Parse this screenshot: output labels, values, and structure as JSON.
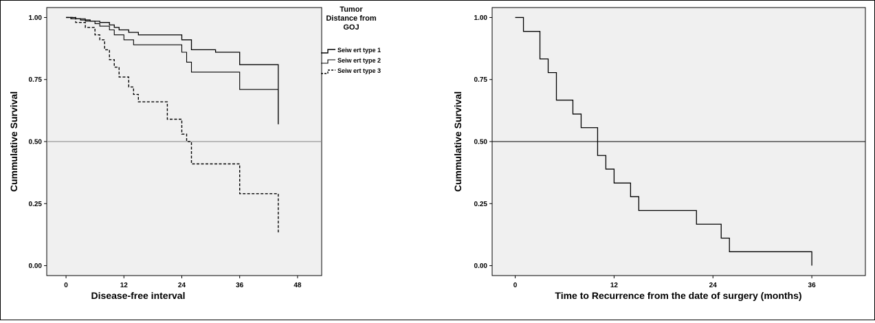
{
  "chart_data": [
    {
      "type": "line",
      "step": true,
      "xlabel": "Disease-free interval",
      "ylabel": "Cummulative Survival",
      "xlim": [
        -4,
        53
      ],
      "ylim": [
        -0.04,
        1.04
      ],
      "xticks": [
        "0",
        "12",
        "24",
        "36",
        "48"
      ],
      "yticks": [
        "0.00",
        "0.25",
        "0.50",
        "0.75",
        "1.00"
      ],
      "reference_line": 0.5,
      "grid": false,
      "background": "#f0f0f0",
      "legend": {
        "position": "right-outside-top",
        "title": "Tumor Distance from GOJ",
        "title_lines": [
          "Tumor",
          "Distance from",
          "GOJ"
        ]
      },
      "series": [
        {
          "name": "Seiw ert type 1",
          "style": "solid",
          "width": 1.3,
          "points": [
            [
              0,
              1.0
            ],
            [
              1,
              0.995
            ],
            [
              3,
              0.99
            ],
            [
              5,
              0.985
            ],
            [
              7,
              0.98
            ],
            [
              9,
              0.97
            ],
            [
              10,
              0.96
            ],
            [
              11,
              0.95
            ],
            [
              13,
              0.94
            ],
            [
              15,
              0.93
            ],
            [
              24,
              0.91
            ],
            [
              26,
              0.87
            ],
            [
              31,
              0.86
            ],
            [
              36,
              0.81
            ],
            [
              44,
              0.81
            ],
            [
              44,
              0.57
            ]
          ]
        },
        {
          "name": "Seiw ert type 2",
          "style": "solid",
          "width": 1.1,
          "points": [
            [
              0,
              1.0
            ],
            [
              2,
              0.995
            ],
            [
              4,
              0.985
            ],
            [
              6,
              0.975
            ],
            [
              7,
              0.965
            ],
            [
              9,
              0.95
            ],
            [
              10,
              0.93
            ],
            [
              12,
              0.91
            ],
            [
              14,
              0.89
            ],
            [
              24,
              0.86
            ],
            [
              25,
              0.82
            ],
            [
              26,
              0.78
            ],
            [
              36,
              0.71
            ],
            [
              44,
              0.71
            ],
            [
              44,
              0.57
            ]
          ]
        },
        {
          "name": "Seiw ert type 3",
          "style": "dashed",
          "width": 1.4,
          "points": [
            [
              0,
              1.0
            ],
            [
              2,
              0.98
            ],
            [
              4,
              0.96
            ],
            [
              6,
              0.93
            ],
            [
              7,
              0.91
            ],
            [
              8,
              0.87
            ],
            [
              9,
              0.83
            ],
            [
              10,
              0.8
            ],
            [
              11,
              0.76
            ],
            [
              13,
              0.72
            ],
            [
              14,
              0.69
            ],
            [
              15,
              0.66
            ],
            [
              21,
              0.59
            ],
            [
              24,
              0.53
            ],
            [
              25,
              0.5
            ],
            [
              26,
              0.41
            ],
            [
              35,
              0.41
            ],
            [
              36,
              0.29
            ],
            [
              44,
              0.29
            ],
            [
              44,
              0.13
            ]
          ]
        }
      ]
    },
    {
      "type": "line",
      "step": true,
      "xlabel": "Time to Recurrence from the date of surgery (months)",
      "ylabel": "Cummulative Survival",
      "xlim": [
        -2.8,
        42.5
      ],
      "ylim": [
        -0.04,
        1.04
      ],
      "xticks": [
        "0",
        "12",
        "24",
        "36"
      ],
      "yticks": [
        "0.00",
        "0.25",
        "0.50",
        "0.75",
        "1.00"
      ],
      "reference_line": 0.5,
      "grid": false,
      "background": "#f0f0f0",
      "series": [
        {
          "style": "solid",
          "width": 1.3,
          "points": [
            [
              0,
              1.0
            ],
            [
              1,
              1.0
            ],
            [
              1,
              0.944
            ],
            [
              3,
              0.944
            ],
            [
              3,
              0.833
            ],
            [
              4,
              0.833
            ],
            [
              4,
              0.778
            ],
            [
              5,
              0.778
            ],
            [
              5,
              0.667
            ],
            [
              7,
              0.667
            ],
            [
              7,
              0.611
            ],
            [
              8,
              0.611
            ],
            [
              8,
              0.556
            ],
            [
              10,
              0.556
            ],
            [
              10,
              0.5
            ],
            [
              10,
              0.444
            ],
            [
              11,
              0.444
            ],
            [
              11,
              0.389
            ],
            [
              12,
              0.389
            ],
            [
              12,
              0.333
            ],
            [
              14,
              0.333
            ],
            [
              14,
              0.278
            ],
            [
              15,
              0.278
            ],
            [
              15,
              0.222
            ],
            [
              22,
              0.222
            ],
            [
              22,
              0.167
            ],
            [
              25,
              0.167
            ],
            [
              25,
              0.111
            ],
            [
              26,
              0.111
            ],
            [
              26,
              0.056
            ],
            [
              36,
              0.056
            ],
            [
              36,
              0.0
            ]
          ]
        }
      ]
    }
  ]
}
